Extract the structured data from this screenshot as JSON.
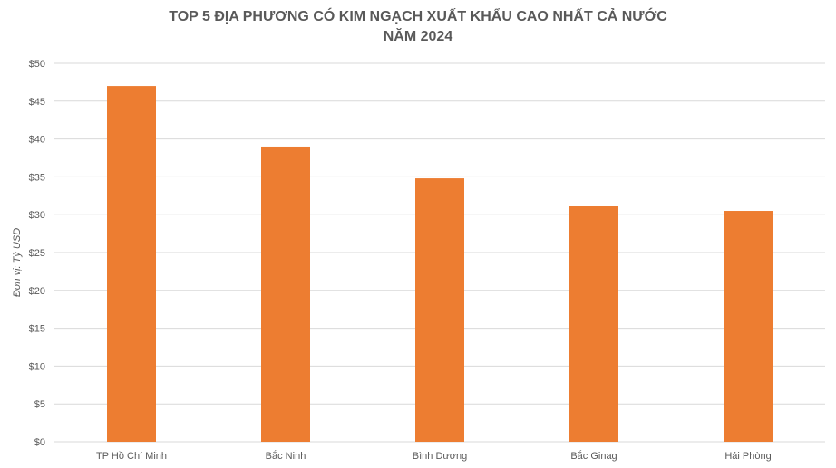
{
  "chart_data": {
    "type": "bar",
    "title_line1": "TOP 5 ĐỊA PHƯƠNG CÓ KIM NGẠCH XUẤT KHẨU CAO NHẤT CẢ NƯỚC",
    "title_line2": "NĂM 2024",
    "ylabel": "Đơn vị: Tỷ USD",
    "xlabel": "",
    "categories": [
      "TP Hồ Chí Minh",
      "Bắc Ninh",
      "Bình Dương",
      "Bắc Ginag",
      "Hải Phòng"
    ],
    "values": [
      47,
      39,
      34.8,
      31.1,
      30.5
    ],
    "ylim": [
      0,
      50
    ],
    "yticks": [
      "$0",
      "$5",
      "$10",
      "$15",
      "$20",
      "$25",
      "$30",
      "$35",
      "$40",
      "$45",
      "$50"
    ],
    "grid": true,
    "legend": "none",
    "bar_color": "#ED7D31",
    "grid_color": "#D9D9D9"
  }
}
